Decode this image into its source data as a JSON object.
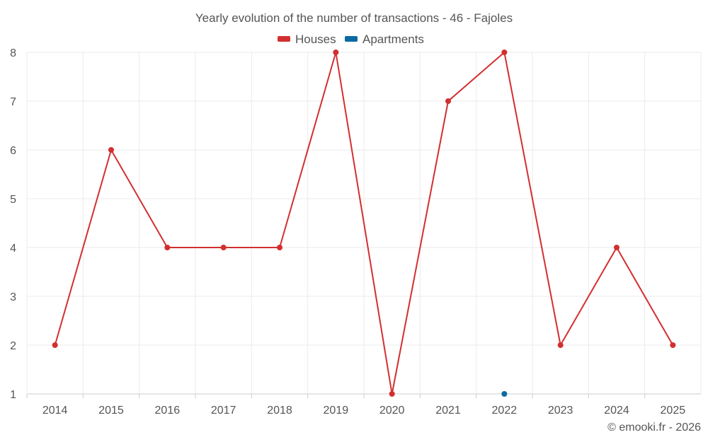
{
  "chart_data": {
    "type": "line",
    "title": "Yearly evolution of the number of transactions - 46 - Fajoles",
    "xlabel": "",
    "ylabel": "",
    "categories": [
      "2014",
      "2015",
      "2016",
      "2017",
      "2018",
      "2019",
      "2020",
      "2021",
      "2022",
      "2023",
      "2024",
      "2025"
    ],
    "ylim": [
      1,
      8
    ],
    "yticks": [
      1,
      2,
      3,
      4,
      5,
      6,
      7,
      8
    ],
    "grid": true,
    "legend_position": "top-center",
    "series": [
      {
        "name": "Houses",
        "color": "#d32f2f",
        "values": [
          2,
          6,
          4,
          4,
          4,
          8,
          1,
          7,
          8,
          2,
          4,
          2
        ]
      },
      {
        "name": "Apartments",
        "color": "#0b6aa2",
        "values": [
          null,
          null,
          null,
          null,
          null,
          null,
          null,
          null,
          1,
          null,
          null,
          null
        ]
      }
    ]
  },
  "footer": {
    "credit": "© emooki.fr - 2026"
  }
}
